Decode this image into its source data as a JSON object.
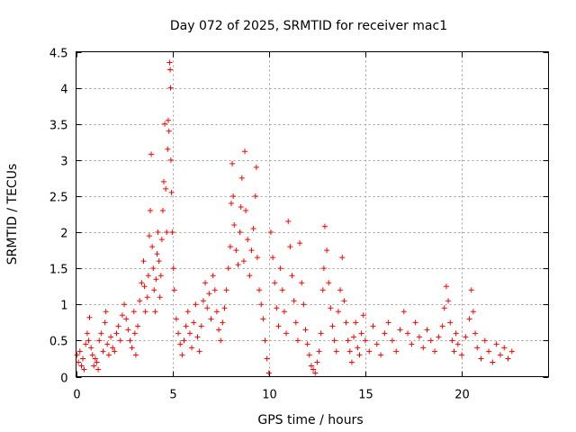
{
  "chart_data": {
    "type": "scatter",
    "title": "Day 072 of 2025, SRMTID for receiver mac1",
    "xlabel": "GPS time / hours",
    "ylabel": "SRMTID / TECUs",
    "xlim": [
      0,
      24.5
    ],
    "ylim": [
      0,
      4.5
    ],
    "xticks": [
      0,
      5,
      10,
      15,
      20
    ],
    "xtick_labels": [
      "0",
      "5",
      "10",
      "15",
      "20"
    ],
    "yticks": [
      0,
      0.5,
      1,
      1.5,
      2,
      2.5,
      3,
      3.5,
      4,
      4.5
    ],
    "ytick_labels": [
      "0",
      "0.5",
      "1",
      "1.5",
      "2",
      "2.5",
      "3",
      "3.5",
      "4",
      "4.5"
    ],
    "grid": true,
    "marker": "+",
    "color": "#ff0000",
    "series": [
      {
        "name": "SRMTID",
        "points": [
          [
            0.05,
            0.3
          ],
          [
            0.12,
            0.2
          ],
          [
            0.2,
            0.35
          ],
          [
            0.28,
            0.15
          ],
          [
            0.35,
            0.25
          ],
          [
            0.42,
            0.1
          ],
          [
            0.5,
            0.45
          ],
          [
            0.58,
            0.6
          ],
          [
            0.65,
            0.5
          ],
          [
            0.7,
            0.82
          ],
          [
            0.78,
            0.4
          ],
          [
            0.85,
            0.3
          ],
          [
            0.92,
            0.15
          ],
          [
            1.0,
            0.25
          ],
          [
            1.08,
            0.2
          ],
          [
            1.15,
            0.1
          ],
          [
            1.2,
            0.5
          ],
          [
            1.3,
            0.6
          ],
          [
            1.4,
            0.35
          ],
          [
            1.5,
            0.75
          ],
          [
            1.55,
            0.9
          ],
          [
            1.62,
            0.45
          ],
          [
            1.7,
            0.3
          ],
          [
            1.8,
            0.55
          ],
          [
            1.9,
            0.4
          ],
          [
            2.0,
            0.35
          ],
          [
            2.1,
            0.6
          ],
          [
            2.2,
            0.7
          ],
          [
            2.3,
            0.5
          ],
          [
            2.4,
            0.85
          ],
          [
            2.5,
            1.0
          ],
          [
            2.6,
            0.8
          ],
          [
            2.7,
            0.65
          ],
          [
            2.8,
            0.5
          ],
          [
            2.9,
            0.4
          ],
          [
            3.0,
            0.9
          ],
          [
            3.05,
            0.6
          ],
          [
            3.1,
            0.3
          ],
          [
            3.2,
            0.7
          ],
          [
            3.3,
            1.05
          ],
          [
            3.4,
            1.3
          ],
          [
            3.5,
            1.6
          ],
          [
            3.55,
            1.25
          ],
          [
            3.6,
            0.9
          ],
          [
            3.7,
            1.1
          ],
          [
            3.75,
            1.4
          ],
          [
            3.8,
            1.95
          ],
          [
            3.85,
            2.3
          ],
          [
            3.9,
            3.08
          ],
          [
            3.95,
            1.8
          ],
          [
            4.0,
            1.5
          ],
          [
            4.05,
            1.2
          ],
          [
            4.1,
            0.9
          ],
          [
            4.15,
            1.35
          ],
          [
            4.2,
            1.7
          ],
          [
            4.25,
            2.0
          ],
          [
            4.3,
            1.6
          ],
          [
            4.35,
            1.1
          ],
          [
            4.4,
            1.4
          ],
          [
            4.45,
            1.9
          ],
          [
            4.5,
            2.3
          ],
          [
            4.55,
            2.7
          ],
          [
            4.6,
            3.5
          ],
          [
            4.65,
            2.6
          ],
          [
            4.7,
            2.0
          ],
          [
            4.75,
            3.15
          ],
          [
            4.78,
            3.55
          ],
          [
            4.82,
            3.4
          ],
          [
            4.85,
            4.35
          ],
          [
            4.88,
            4.25
          ],
          [
            4.9,
            4.0
          ],
          [
            4.92,
            3.0
          ],
          [
            4.95,
            2.55
          ],
          [
            5.0,
            2.0
          ],
          [
            5.05,
            1.5
          ],
          [
            5.1,
            1.2
          ],
          [
            5.2,
            0.8
          ],
          [
            5.3,
            0.6
          ],
          [
            5.4,
            0.45
          ],
          [
            5.5,
            0.3
          ],
          [
            5.6,
            0.5
          ],
          [
            5.7,
            0.7
          ],
          [
            5.8,
            0.9
          ],
          [
            5.9,
            0.6
          ],
          [
            6.0,
            0.4
          ],
          [
            6.1,
            0.75
          ],
          [
            6.2,
            1.0
          ],
          [
            6.3,
            0.55
          ],
          [
            6.4,
            0.35
          ],
          [
            6.5,
            0.7
          ],
          [
            6.6,
            1.05
          ],
          [
            6.7,
            1.3
          ],
          [
            6.8,
            0.95
          ],
          [
            6.9,
            1.15
          ],
          [
            7.0,
            0.8
          ],
          [
            7.1,
            1.4
          ],
          [
            7.2,
            1.2
          ],
          [
            7.3,
            0.9
          ],
          [
            7.4,
            0.65
          ],
          [
            7.5,
            0.5
          ],
          [
            7.6,
            0.75
          ],
          [
            7.7,
            0.95
          ],
          [
            7.8,
            1.2
          ],
          [
            7.9,
            1.5
          ],
          [
            8.0,
            1.8
          ],
          [
            8.05,
            2.4
          ],
          [
            8.1,
            2.95
          ],
          [
            8.15,
            2.5
          ],
          [
            8.2,
            2.1
          ],
          [
            8.3,
            1.75
          ],
          [
            8.4,
            1.55
          ],
          [
            8.5,
            2.0
          ],
          [
            8.55,
            2.35
          ],
          [
            8.6,
            2.75
          ],
          [
            8.7,
            1.6
          ],
          [
            8.75,
            3.12
          ],
          [
            8.8,
            2.3
          ],
          [
            8.9,
            1.9
          ],
          [
            9.0,
            1.4
          ],
          [
            9.1,
            1.75
          ],
          [
            9.2,
            2.05
          ],
          [
            9.3,
            2.5
          ],
          [
            9.35,
            2.9
          ],
          [
            9.4,
            1.65
          ],
          [
            9.5,
            1.2
          ],
          [
            9.6,
            1.0
          ],
          [
            9.7,
            0.8
          ],
          [
            9.8,
            0.5
          ],
          [
            9.9,
            0.25
          ],
          [
            10.0,
            0.05
          ],
          [
            10.1,
            2.0
          ],
          [
            10.2,
            1.65
          ],
          [
            10.3,
            1.3
          ],
          [
            10.4,
            0.95
          ],
          [
            10.5,
            0.7
          ],
          [
            10.6,
            1.5
          ],
          [
            10.7,
            1.2
          ],
          [
            10.8,
            0.9
          ],
          [
            10.9,
            0.6
          ],
          [
            11.0,
            2.15
          ],
          [
            11.1,
            1.8
          ],
          [
            11.2,
            1.4
          ],
          [
            11.3,
            1.05
          ],
          [
            11.4,
            0.75
          ],
          [
            11.5,
            0.5
          ],
          [
            11.6,
            1.85
          ],
          [
            11.7,
            1.3
          ],
          [
            11.8,
            1.0
          ],
          [
            11.9,
            0.65
          ],
          [
            12.0,
            0.45
          ],
          [
            12.1,
            0.3
          ],
          [
            12.2,
            0.15
          ],
          [
            12.3,
            0.1
          ],
          [
            12.4,
            0.05
          ],
          [
            12.5,
            0.2
          ],
          [
            12.6,
            0.35
          ],
          [
            12.7,
            0.6
          ],
          [
            12.8,
            1.2
          ],
          [
            12.85,
            1.5
          ],
          [
            12.9,
            2.08
          ],
          [
            13.0,
            1.75
          ],
          [
            13.1,
            1.3
          ],
          [
            13.2,
            0.95
          ],
          [
            13.3,
            0.7
          ],
          [
            13.4,
            0.5
          ],
          [
            13.5,
            0.35
          ],
          [
            13.6,
            0.9
          ],
          [
            13.7,
            1.2
          ],
          [
            13.8,
            1.65
          ],
          [
            13.9,
            1.05
          ],
          [
            14.0,
            0.75
          ],
          [
            14.1,
            0.5
          ],
          [
            14.2,
            0.35
          ],
          [
            14.3,
            0.2
          ],
          [
            14.4,
            0.55
          ],
          [
            14.5,
            0.75
          ],
          [
            14.6,
            0.4
          ],
          [
            14.7,
            0.3
          ],
          [
            14.8,
            0.6
          ],
          [
            14.9,
            0.85
          ],
          [
            15.0,
            0.5
          ],
          [
            15.2,
            0.35
          ],
          [
            15.4,
            0.7
          ],
          [
            15.6,
            0.45
          ],
          [
            15.8,
            0.3
          ],
          [
            16.0,
            0.6
          ],
          [
            16.2,
            0.75
          ],
          [
            16.4,
            0.5
          ],
          [
            16.6,
            0.35
          ],
          [
            16.8,
            0.65
          ],
          [
            17.0,
            0.9
          ],
          [
            17.2,
            0.6
          ],
          [
            17.4,
            0.45
          ],
          [
            17.6,
            0.75
          ],
          [
            17.8,
            0.55
          ],
          [
            18.0,
            0.4
          ],
          [
            18.2,
            0.65
          ],
          [
            18.4,
            0.5
          ],
          [
            18.6,
            0.35
          ],
          [
            18.8,
            0.55
          ],
          [
            19.0,
            0.7
          ],
          [
            19.1,
            0.95
          ],
          [
            19.2,
            1.25
          ],
          [
            19.3,
            1.05
          ],
          [
            19.4,
            0.75
          ],
          [
            19.5,
            0.5
          ],
          [
            19.6,
            0.35
          ],
          [
            19.7,
            0.6
          ],
          [
            19.8,
            0.45
          ],
          [
            20.0,
            0.3
          ],
          [
            20.2,
            0.55
          ],
          [
            20.4,
            0.8
          ],
          [
            20.5,
            1.2
          ],
          [
            20.6,
            0.9
          ],
          [
            20.7,
            0.6
          ],
          [
            20.8,
            0.4
          ],
          [
            21.0,
            0.25
          ],
          [
            21.2,
            0.5
          ],
          [
            21.4,
            0.35
          ],
          [
            21.6,
            0.2
          ],
          [
            21.8,
            0.45
          ],
          [
            22.0,
            0.3
          ],
          [
            22.2,
            0.4
          ],
          [
            22.4,
            0.25
          ],
          [
            22.6,
            0.35
          ]
        ]
      }
    ]
  }
}
